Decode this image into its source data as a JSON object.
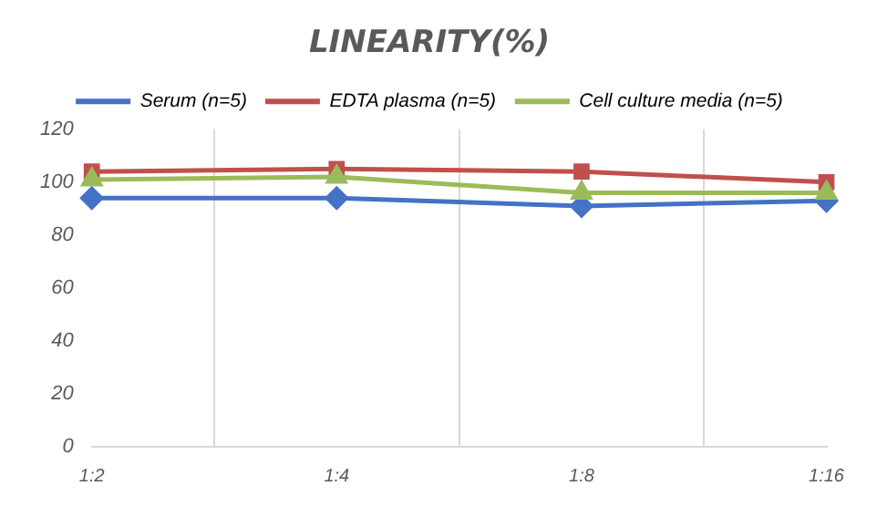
{
  "chart_data": {
    "type": "line",
    "title": "LINEARITY(%)",
    "categories": [
      "1:2",
      "1:4",
      "1:8",
      "1:16"
    ],
    "series": [
      {
        "name": "Serum (n=5)",
        "color": "#4472c4",
        "marker": "diamond",
        "values": [
          94,
          94,
          91,
          93
        ]
      },
      {
        "name": "EDTA plasma (n=5)",
        "color": "#c0504d",
        "marker": "square",
        "values": [
          104,
          105,
          104,
          100
        ]
      },
      {
        "name": "Cell culture media (n=5)",
        "color": "#9bbb59",
        "marker": "triangle",
        "values": [
          101,
          102,
          96,
          96
        ]
      }
    ],
    "ylim": [
      0,
      120
    ],
    "yticks": [
      0,
      20,
      40,
      60,
      80,
      100,
      120
    ],
    "grid": "x",
    "legend": "top"
  }
}
